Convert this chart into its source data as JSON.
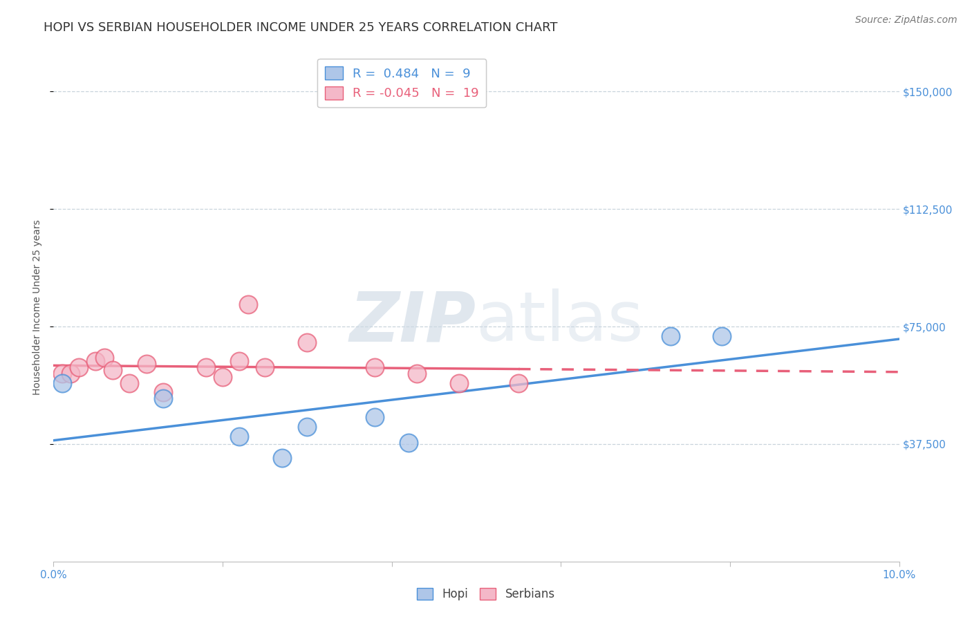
{
  "title": "HOPI VS SERBIAN HOUSEHOLDER INCOME UNDER 25 YEARS CORRELATION CHART",
  "source": "Source: ZipAtlas.com",
  "ylabel": "Householder Income Under 25 years",
  "xlim": [
    0.0,
    0.1
  ],
  "ylim": [
    0,
    162500
  ],
  "yticks": [
    37500,
    75000,
    112500,
    150000
  ],
  "ytick_labels": [
    "$37,500",
    "$75,000",
    "$112,500",
    "$150,000"
  ],
  "hopi_R": 0.484,
  "hopi_N": 9,
  "serbian_R": -0.045,
  "serbian_N": 19,
  "hopi_color": "#aec6e8",
  "serbian_color": "#f4b8c8",
  "hopi_line_color": "#4a90d9",
  "serbian_line_color": "#e8607a",
  "hopi_x": [
    0.001,
    0.013,
    0.022,
    0.027,
    0.03,
    0.038,
    0.042,
    0.073,
    0.079
  ],
  "hopi_y": [
    57000,
    52000,
    40000,
    33000,
    43000,
    46000,
    38000,
    72000,
    72000
  ],
  "serbian_x": [
    0.001,
    0.002,
    0.003,
    0.005,
    0.006,
    0.007,
    0.009,
    0.011,
    0.013,
    0.018,
    0.02,
    0.022,
    0.023,
    0.025,
    0.03,
    0.038,
    0.043,
    0.048,
    0.055
  ],
  "serbian_y": [
    60000,
    60000,
    62000,
    64000,
    65000,
    61000,
    57000,
    63000,
    54000,
    62000,
    59000,
    64000,
    82000,
    62000,
    70000,
    62000,
    60000,
    57000,
    57000
  ],
  "background_color": "#ffffff",
  "grid_color": "#c8d4dc",
  "watermark_color": "#ccd8e4",
  "title_fontsize": 13,
  "axis_label_fontsize": 10,
  "tick_fontsize": 11,
  "source_fontsize": 10
}
